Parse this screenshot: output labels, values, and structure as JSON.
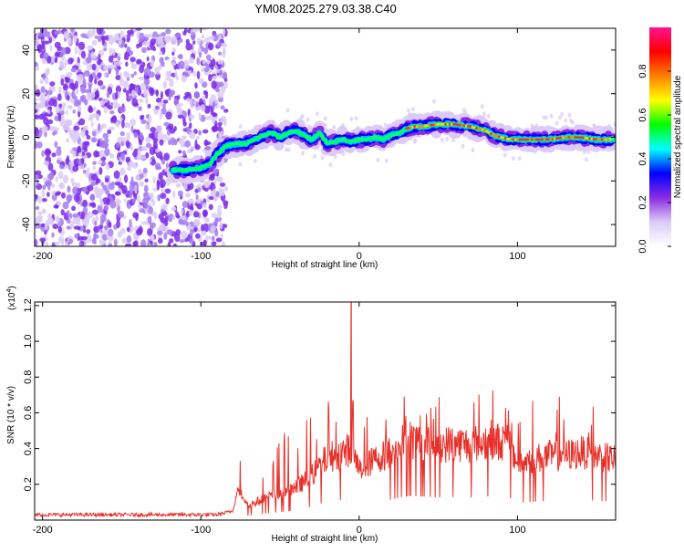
{
  "title": "YM08.2025.279.03.38.C40",
  "chart_data": [
    {
      "type": "heatmap",
      "name": "spectrogram",
      "xlabel": "Height of straight line (km)",
      "ylabel": "Frequency (Hz)",
      "xlim": [
        -205,
        162
      ],
      "ylim": [
        -50,
        50
      ],
      "x_ticks": [
        -200,
        -100,
        0,
        100
      ],
      "y_ticks": [
        -40,
        -20,
        0,
        20,
        40
      ],
      "noise_region_x": [
        -205,
        -88
      ],
      "ridge": {
        "x": [
          -118,
          -108,
          -100,
          -94,
          -90,
          -84,
          -78,
          -72,
          -66,
          -60,
          -55,
          -50,
          -45,
          -40,
          -35,
          -30,
          -25,
          -20,
          -15,
          -10,
          -5,
          0,
          5,
          10,
          15,
          20,
          25,
          30,
          35,
          40,
          50,
          60,
          70,
          75,
          80,
          85,
          90,
          95,
          100,
          110,
          120,
          130,
          140,
          150,
          160
        ],
        "y": [
          -15,
          -15,
          -14,
          -12,
          -8,
          -4,
          -3,
          -3,
          -1,
          1,
          2,
          0,
          2,
          3,
          1,
          -1,
          2,
          -3,
          -2,
          -1,
          -2,
          -1,
          -1,
          0,
          -1,
          1,
          2,
          4,
          5,
          5,
          6,
          6,
          5,
          4,
          3,
          1,
          0,
          -1,
          -1,
          -1,
          -1,
          0,
          0,
          -1,
          -1
        ]
      },
      "colorbar": {
        "label": "Normalized spectral amplitude",
        "range": [
          0,
          1
        ],
        "ticks": [
          "0.0",
          "0.2",
          "0.4",
          "0.6",
          "0.8"
        ],
        "tick_values": [
          0,
          0.2,
          0.4,
          0.6,
          0.8
        ],
        "colors": [
          "#ffffff",
          "#dccbf6",
          "#8a2be2",
          "#0000ff",
          "#00ffff",
          "#00ff00",
          "#ffff00",
          "#ff7f00",
          "#ff0000",
          "#ff1493"
        ]
      }
    },
    {
      "type": "line",
      "name": "snr",
      "xlabel": "Height of straight line (km)",
      "ylabel": "SNR (10 * v/v)",
      "scale_label": "(x10",
      "scale_exp": "4",
      "xlim": [
        -205,
        162
      ],
      "ylim": [
        0,
        1.22
      ],
      "x_ticks": [
        -200,
        -100,
        0,
        100
      ],
      "y_ticks": [
        "0.2",
        "0.4",
        "0.6",
        "0.8",
        "1.0",
        "1.2"
      ],
      "y_tick_values": [
        0.2,
        0.4,
        0.6,
        0.8,
        1.0,
        1.2
      ],
      "color": "#e8302a",
      "spike": {
        "x": -5,
        "y": 1.22
      },
      "envelope": {
        "x": [
          -205,
          -90,
          -80,
          -76,
          -70,
          -60,
          -50,
          -40,
          -30,
          -20,
          -10,
          -5,
          0,
          10,
          20,
          30,
          40,
          50,
          60,
          70,
          80,
          90,
          95,
          100,
          110,
          120,
          130,
          140,
          150,
          162
        ],
        "y": [
          0.03,
          0.03,
          0.05,
          0.18,
          0.08,
          0.12,
          0.15,
          0.18,
          0.25,
          0.35,
          0.38,
          0.4,
          0.28,
          0.34,
          0.38,
          0.45,
          0.44,
          0.42,
          0.43,
          0.42,
          0.44,
          0.44,
          0.42,
          0.32,
          0.34,
          0.36,
          0.36,
          0.38,
          0.36,
          0.34
        ]
      }
    }
  ]
}
